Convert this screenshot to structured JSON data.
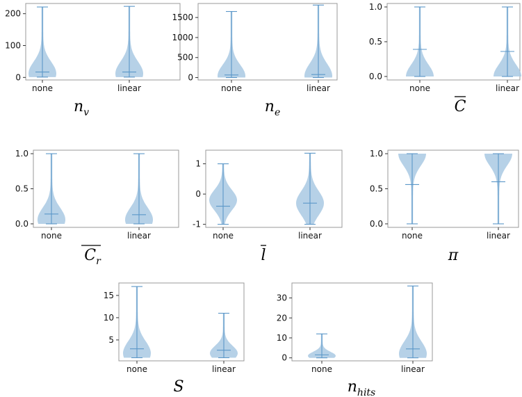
{
  "chart_data": [
    {
      "type": "violin",
      "title": "n_v",
      "categories": [
        "none",
        "linear"
      ],
      "ylim": [
        -8,
        232
      ],
      "yticks": [
        0,
        100,
        200
      ],
      "series": [
        {
          "values": {
            "min": 1,
            "max": 221,
            "median": 17,
            "mode": 12
          }
        },
        {
          "values": {
            "min": 1,
            "max": 223,
            "median": 17,
            "mode": 12
          }
        }
      ]
    },
    {
      "type": "violin",
      "title": "n_e",
      "categories": [
        "none",
        "linear"
      ],
      "ylim": [
        -60,
        1850
      ],
      "yticks": [
        0,
        500,
        1000,
        1500
      ],
      "series": [
        {
          "values": {
            "min": 0,
            "max": 1650,
            "median": 65,
            "mode": 40
          }
        },
        {
          "values": {
            "min": 0,
            "max": 1810,
            "median": 75,
            "mode": 40
          }
        }
      ]
    },
    {
      "type": "violin",
      "title": "C",
      "categories": [
        "none",
        "linear"
      ],
      "ylim": [
        -0.05,
        1.05
      ],
      "yticks": [
        0.0,
        0.5,
        1.0
      ],
      "series": [
        {
          "values": {
            "min": 0.0,
            "max": 1.0,
            "median": 0.39,
            "mode": 0.0
          }
        },
        {
          "values": {
            "min": 0.0,
            "max": 1.0,
            "median": 0.36,
            "mode": 0.0
          }
        }
      ]
    },
    {
      "type": "violin",
      "title": "C_r",
      "categories": [
        "none",
        "linear"
      ],
      "ylim": [
        -0.05,
        1.05
      ],
      "yticks": [
        0.0,
        0.5,
        1.0
      ],
      "series": [
        {
          "values": {
            "min": 0.0,
            "max": 1.0,
            "median": 0.14,
            "mode": 0.06
          }
        },
        {
          "values": {
            "min": 0.0,
            "max": 1.0,
            "median": 0.13,
            "mode": 0.06
          }
        }
      ]
    },
    {
      "type": "violin",
      "title": "l",
      "categories": [
        "none",
        "linear"
      ],
      "ylim": [
        -1.1,
        1.45
      ],
      "yticks": [
        -1,
        0,
        1
      ],
      "series": [
        {
          "values": {
            "min": -1.0,
            "max": 1.0,
            "median": -0.4,
            "mode": -0.2
          }
        },
        {
          "values": {
            "min": -1.0,
            "max": 1.35,
            "median": -0.3,
            "mode": -0.3
          }
        }
      ]
    },
    {
      "type": "violin",
      "title": "π",
      "categories": [
        "none",
        "linear"
      ],
      "ylim": [
        -0.05,
        1.05
      ],
      "yticks": [
        0.0,
        0.5,
        1.0
      ],
      "series": [
        {
          "values": {
            "min": 0.0,
            "max": 1.0,
            "median": 0.56,
            "mode": 1.0
          }
        },
        {
          "values": {
            "min": 0.0,
            "max": 1.0,
            "median": 0.6,
            "mode": 1.0
          }
        }
      ]
    },
    {
      "type": "violin",
      "title": "S",
      "categories": [
        "none",
        "linear"
      ],
      "ylim": [
        0.3,
        17.8
      ],
      "yticks": [
        5,
        10,
        15
      ],
      "series": [
        {
          "values": {
            "min": 1,
            "max": 17,
            "median": 3,
            "mode": 2
          }
        },
        {
          "values": {
            "min": 1,
            "max": 11,
            "median": 2.7,
            "mode": 2
          }
        }
      ]
    },
    {
      "type": "violin",
      "title": "n_hits",
      "categories": [
        "none",
        "linear"
      ],
      "ylim": [
        -1.5,
        37.5
      ],
      "yticks": [
        0,
        10,
        20,
        30
      ],
      "series": [
        {
          "values": {
            "min": 0,
            "max": 12,
            "median": 1.5,
            "mode": 1
          }
        },
        {
          "values": {
            "min": 0,
            "max": 36,
            "median": 4.5,
            "mode": 2
          }
        }
      ]
    }
  ]
}
